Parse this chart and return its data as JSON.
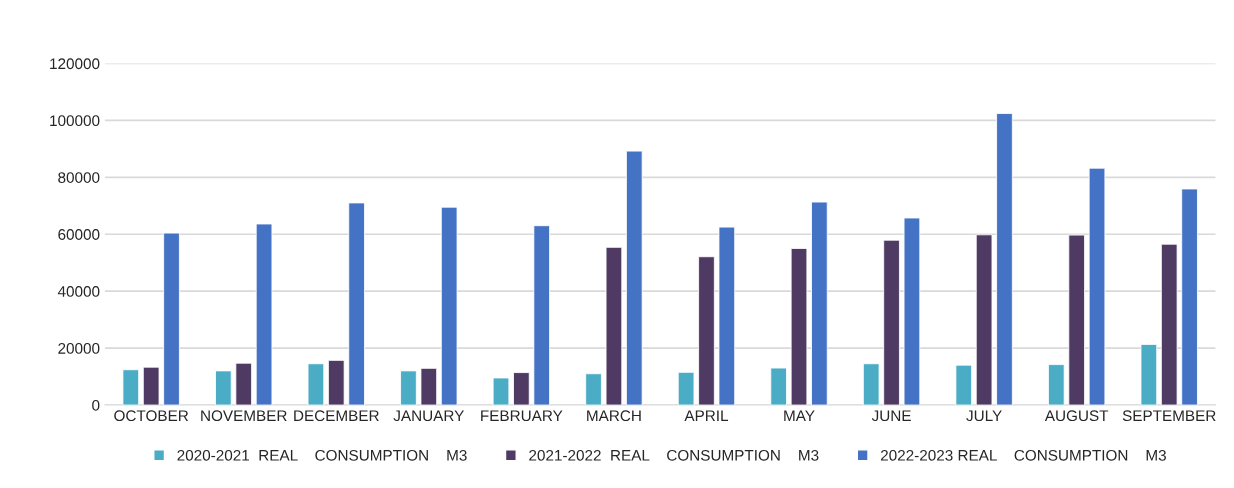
{
  "chart_data": {
    "type": "bar",
    "categories": [
      "OCTOBER",
      "NOVEMBER",
      "DECEMBER",
      "JANUARY",
      "FEBRUARY",
      "MARCH",
      "APRIL",
      "MAY",
      "JUNE",
      "JULY",
      "AUGUST",
      "SEPTEMBER"
    ],
    "series": [
      {
        "name": "2020-2021  REAL    CONSUMPTION    M3",
        "color": "#4bacc6",
        "values": [
          12400,
          12000,
          14500,
          12000,
          9500,
          11000,
          11500,
          13000,
          14500,
          14000,
          14200,
          21300
        ]
      },
      {
        "name": "2021-2022  REAL    CONSUMPTION    M3",
        "color": "#4e3a62",
        "values": [
          13300,
          14700,
          15700,
          12900,
          11400,
          55400,
          52100,
          55000,
          57900,
          59800,
          59700,
          56500
        ]
      },
      {
        "name": "2022-2023 REAL    CONSUMPTION    M3",
        "color": "#4472c4",
        "values": [
          60400,
          63600,
          71000,
          69500,
          63000,
          89200,
          62500,
          71300,
          65700,
          102400,
          83200,
          75900
        ]
      }
    ],
    "ylim": [
      0,
      120000
    ],
    "yticks": [
      0,
      20000,
      40000,
      60000,
      80000,
      100000,
      120000
    ],
    "grid": "y",
    "legend": "bottom"
  }
}
